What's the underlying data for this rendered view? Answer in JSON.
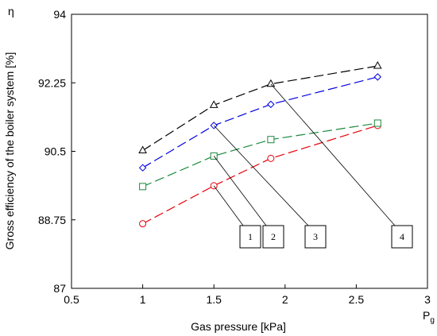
{
  "chart_data": {
    "type": "line",
    "xlabel": "Gas pressure [kPa]",
    "ylabel": "Gross efficiency of the boiler system [%]",
    "x_symbol": "P",
    "x_symbol_sub": "g",
    "y_symbol": "η",
    "xlim": [
      0.5,
      3
    ],
    "ylim": [
      87,
      94
    ],
    "xticks": [
      "0.5",
      "1",
      "1.5",
      "2",
      "2.5",
      "3"
    ],
    "yticks": [
      "87",
      "88.75",
      "90.5",
      "92.25",
      "94"
    ],
    "grid": false,
    "series": [
      {
        "name": "1",
        "color": "#e8000b",
        "marker": "circle",
        "x": [
          1,
          1.5,
          1.9,
          2.65
        ],
        "y": [
          88.65,
          89.62,
          90.32,
          91.16
        ]
      },
      {
        "name": "2",
        "color": "#1a8a3c",
        "marker": "square",
        "x": [
          1,
          1.5,
          1.9,
          2.65
        ],
        "y": [
          89.6,
          90.38,
          90.8,
          91.22
        ]
      },
      {
        "name": "3",
        "color": "#0000e0",
        "marker": "diamond",
        "x": [
          1,
          1.5,
          1.9,
          2.65
        ],
        "y": [
          90.08,
          91.16,
          91.7,
          92.4
        ]
      },
      {
        "name": "4",
        "color": "#000000",
        "marker": "triangle",
        "x": [
          1,
          1.5,
          1.9,
          2.65
        ],
        "y": [
          90.52,
          91.68,
          92.22,
          92.68
        ]
      }
    ],
    "callouts": [
      {
        "label": "1",
        "series": 0,
        "point": 1
      },
      {
        "label": "2",
        "series": 1,
        "point": 1
      },
      {
        "label": "3",
        "series": 2,
        "point": 1
      },
      {
        "label": "4",
        "series": 3,
        "point": 2
      }
    ]
  }
}
